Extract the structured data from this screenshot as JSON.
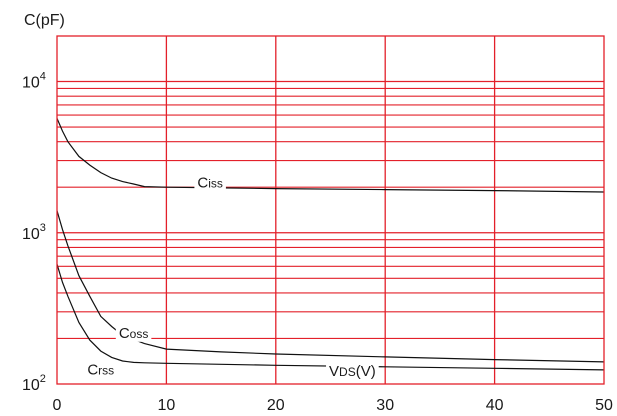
{
  "chart_data": {
    "type": "line",
    "ylabel": "C(pF)",
    "xlabel": "VDS(V)",
    "xlim": [
      0,
      50
    ],
    "ylim": [
      100,
      20000
    ],
    "yscale": "log",
    "grid": true,
    "x_ticks": [
      "0",
      "10",
      "20",
      "30",
      "40",
      "50"
    ],
    "y_ticks": [
      {
        "base": "10",
        "exp": "2",
        "value": 100
      },
      {
        "base": "10",
        "exp": "3",
        "value": 1000
      },
      {
        "base": "10",
        "exp": "4",
        "value": 10000
      }
    ],
    "series": [
      {
        "name": "Ciss",
        "label_main": "C",
        "label_sub": "iss",
        "label_at": {
          "x": 14,
          "y": 2150
        },
        "x": [
          0,
          0.5,
          1,
          2,
          3,
          4,
          5,
          6,
          7,
          8,
          10,
          15,
          20,
          30,
          40,
          50
        ],
        "values": [
          5700,
          4700,
          4000,
          3200,
          2800,
          2500,
          2300,
          2180,
          2100,
          2020,
          2000,
          1980,
          1960,
          1930,
          1900,
          1860
        ]
      },
      {
        "name": "Coss",
        "label_main": "C",
        "label_sub": "oss",
        "label_at": {
          "x": 7,
          "y": 218
        },
        "x": [
          0,
          0.5,
          1,
          2,
          3,
          4,
          5,
          6,
          8,
          10,
          15,
          20,
          30,
          40,
          50
        ],
        "values": [
          1400,
          1050,
          820,
          520,
          380,
          280,
          240,
          210,
          185,
          170,
          163,
          158,
          151,
          145,
          140
        ]
      },
      {
        "name": "Crss",
        "label_main": "C",
        "label_sub": "rss",
        "label_at": {
          "x": 4,
          "y": 125
        },
        "x": [
          0,
          0.5,
          1,
          2,
          3,
          4,
          5,
          6,
          7,
          8,
          10,
          15,
          20,
          30,
          40,
          50
        ],
        "values": [
          620,
          470,
          380,
          255,
          195,
          165,
          150,
          142,
          139,
          138,
          137,
          135,
          133,
          130,
          127,
          124
        ]
      }
    ],
    "xlabel_parts": {
      "main": "V",
      "sub": "DS",
      "tail": "(V)"
    },
    "xlabel_at": {
      "x": 27,
      "y": 122
    }
  }
}
